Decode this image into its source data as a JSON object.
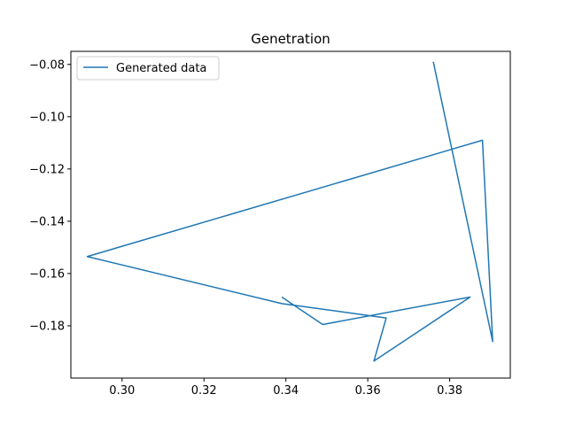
{
  "chart_data": {
    "type": "line",
    "title": "Genetration",
    "xlabel": "",
    "ylabel": "",
    "xlim": [
      0.2875,
      0.3948
    ],
    "ylim": [
      -0.2,
      -0.075
    ],
    "xticks": [
      0.3,
      0.32,
      0.34,
      0.36,
      0.38
    ],
    "xtick_labels": [
      "0.30",
      "0.32",
      "0.34",
      "0.36",
      "0.38"
    ],
    "yticks": [
      -0.08,
      -0.1,
      -0.12,
      -0.14,
      -0.16,
      -0.18
    ],
    "ytick_labels": [
      "−0.08",
      "−0.10",
      "−0.12",
      "−0.14",
      "−0.16",
      "−0.18"
    ],
    "grid": false,
    "legend_position": "top-left",
    "series": [
      {
        "name": "Generated data",
        "color": "#1f77b4",
        "x": [
          0.376,
          0.3905,
          0.388,
          0.2915,
          0.339,
          0.3645,
          0.3615,
          0.385,
          0.349,
          0.339
        ],
        "y": [
          -0.079,
          -0.186,
          -0.109,
          -0.1535,
          -0.1715,
          -0.177,
          -0.1935,
          -0.169,
          -0.1795,
          -0.169
        ]
      }
    ]
  }
}
